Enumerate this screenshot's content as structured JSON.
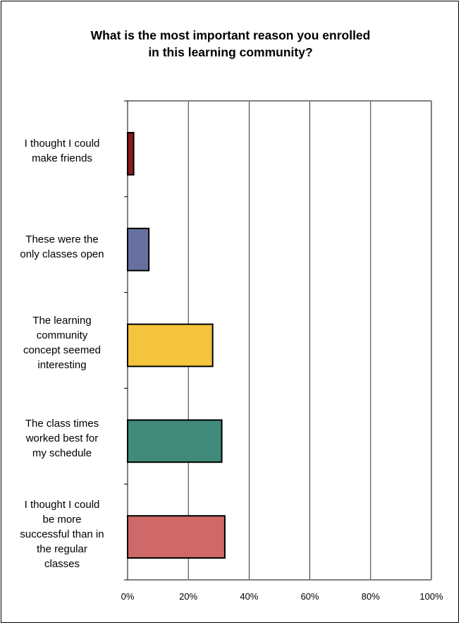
{
  "chart_data": {
    "type": "bar",
    "orientation": "horizontal",
    "title": "What is the most important reason you enrolled in this learning community?",
    "title_lines": [
      "What is the most important reason you enrolled",
      "in this learning community?"
    ],
    "categories": [
      "I thought I could make friends",
      "These were the only classes open",
      "The learning community concept seemed interesting",
      "The class times worked best for my schedule",
      "I thought I could be more successful than in the regular classes"
    ],
    "category_lines": [
      [
        "I thought I could",
        "make friends"
      ],
      [
        "These were the",
        "only classes open"
      ],
      [
        "The learning",
        "community",
        "concept seemed",
        "interesting"
      ],
      [
        "The class times",
        "worked best for",
        "my schedule"
      ],
      [
        "I thought I could",
        "be more",
        "successful than in",
        "the regular",
        "classes"
      ]
    ],
    "values": [
      2,
      7,
      28,
      31,
      32
    ],
    "colors": [
      "#8b1a1a",
      "#6670a0",
      "#f4c43c",
      "#3f8a78",
      "#cf6868"
    ],
    "xlim": [
      0,
      100
    ],
    "x_ticks": [
      "0%",
      "20%",
      "40%",
      "60%",
      "80%",
      "100%"
    ],
    "grid": true,
    "xlabel": "",
    "ylabel": ""
  }
}
